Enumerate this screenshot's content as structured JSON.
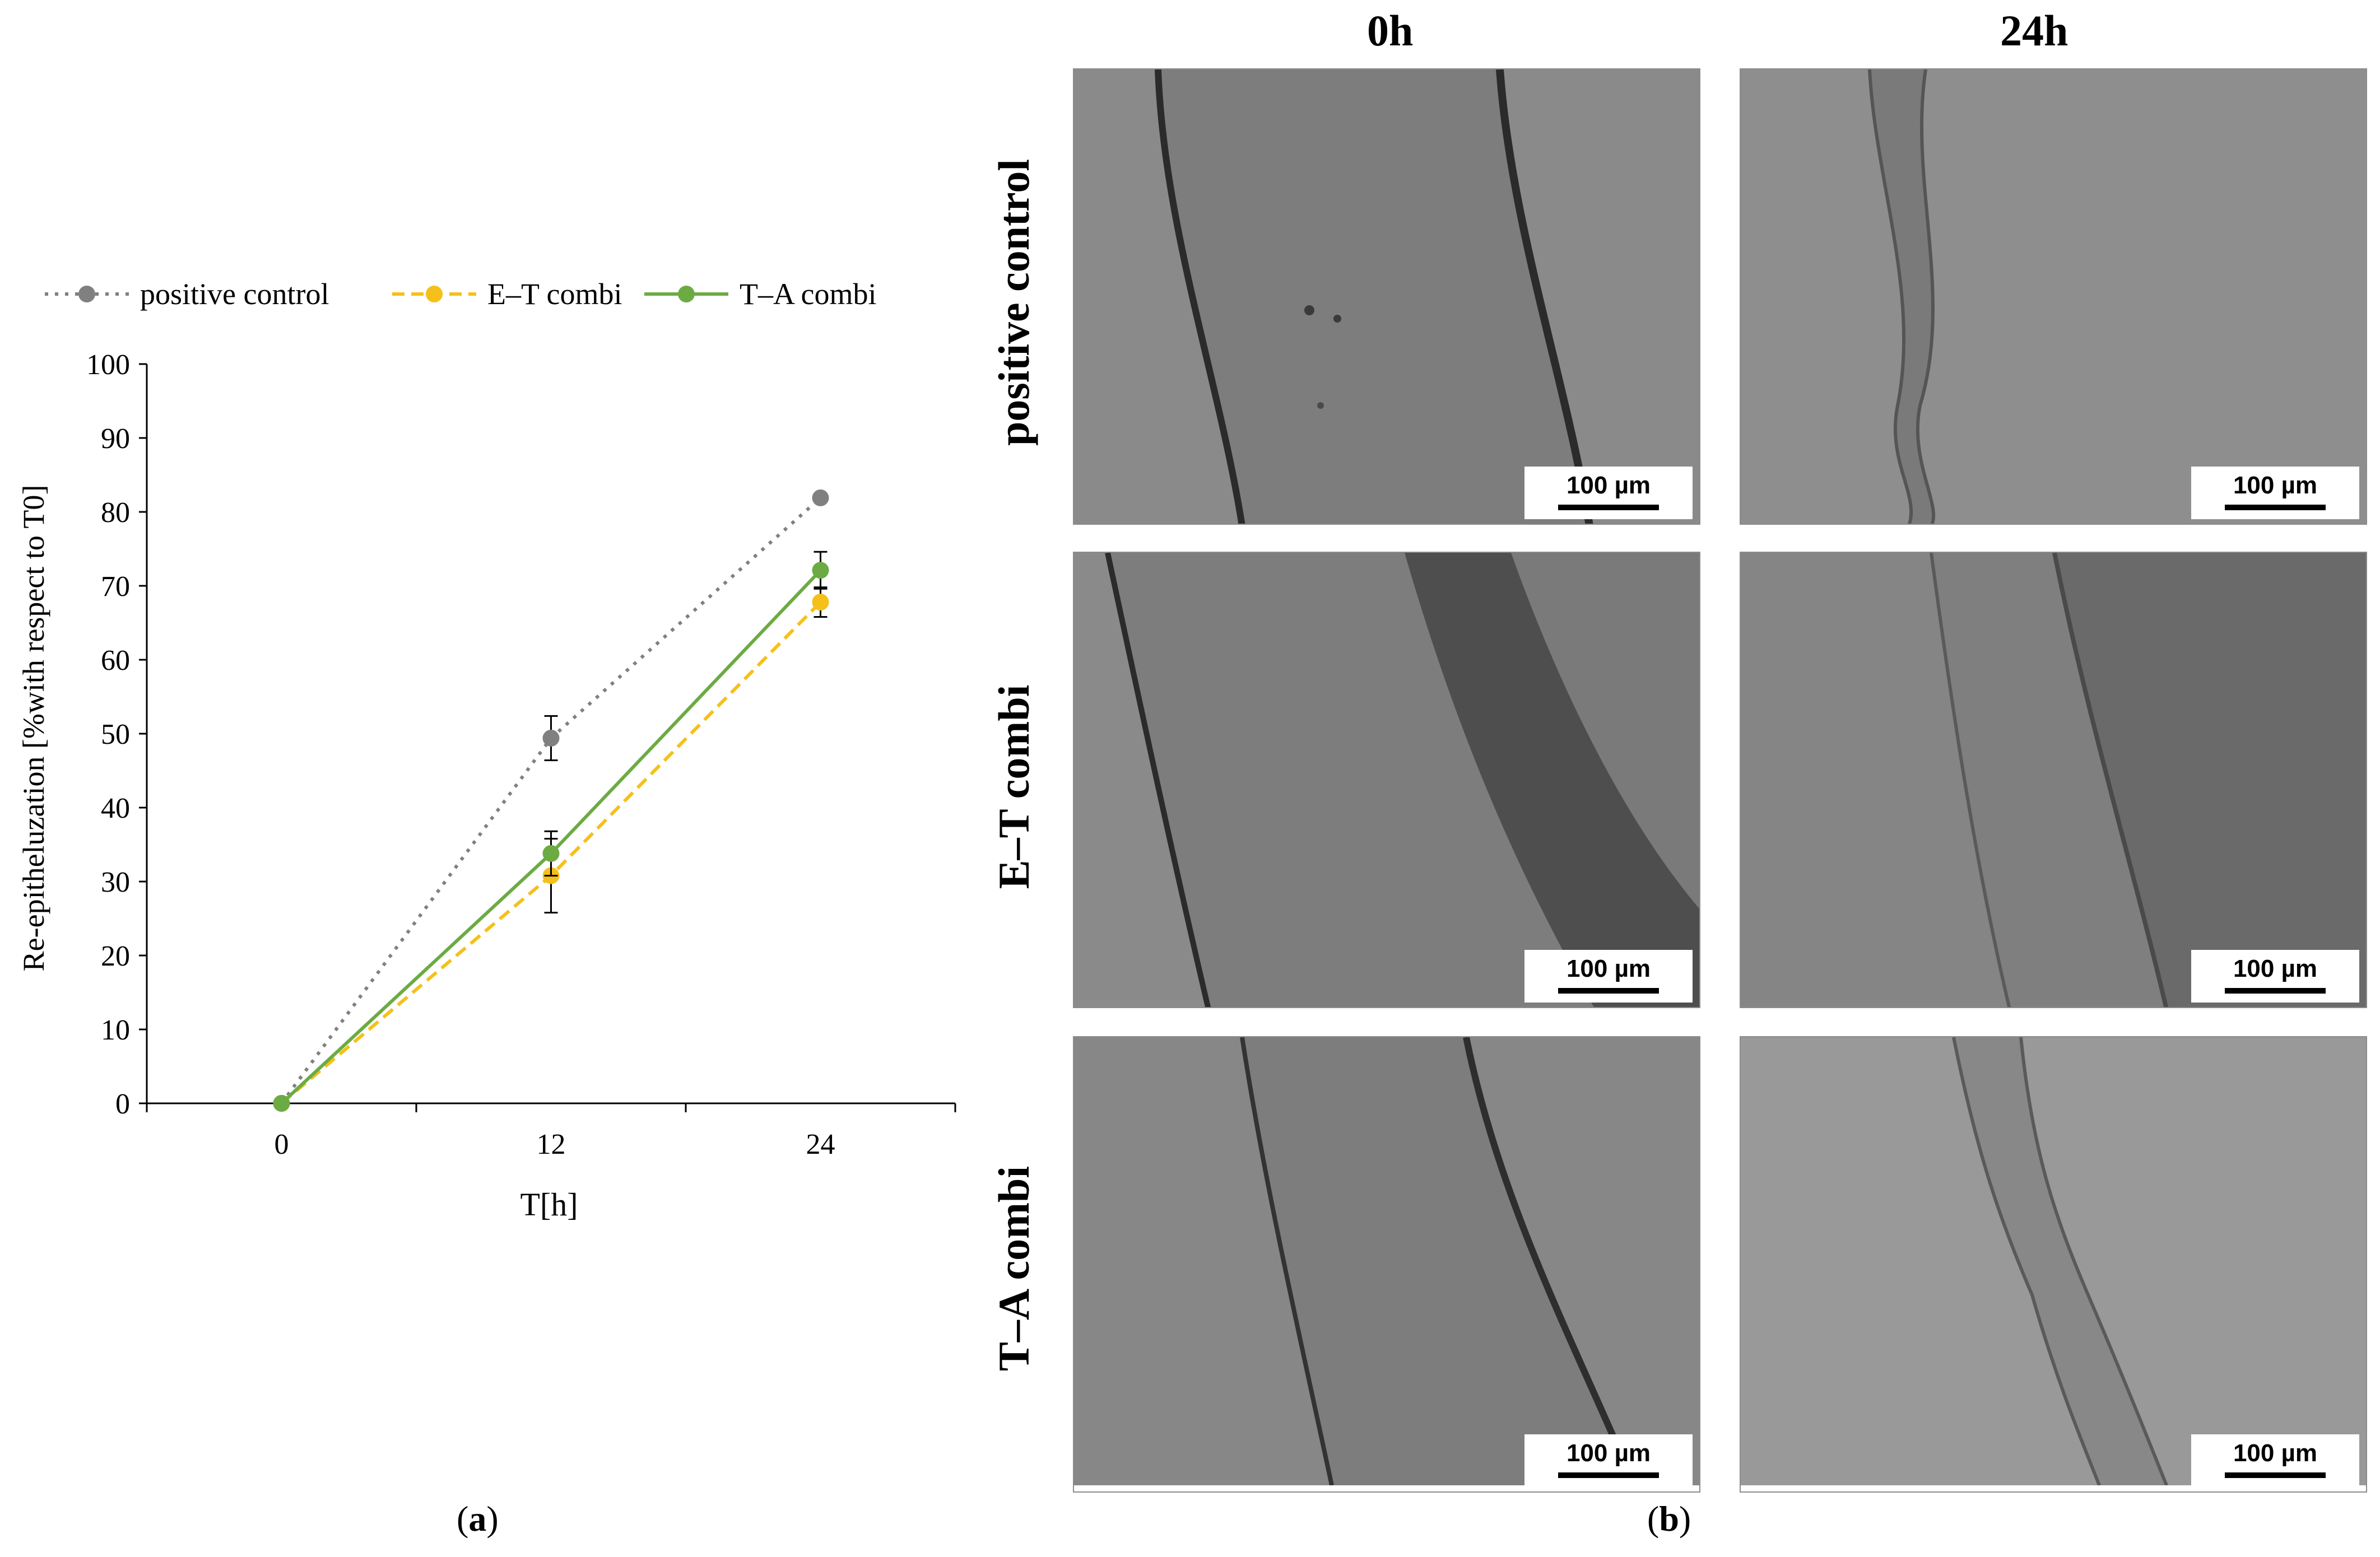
{
  "chart_data": {
    "type": "line",
    "title": "",
    "xlabel": "T[h]",
    "ylabel": "Re-epitheluzation [%with respect to T0]",
    "ylim": [
      0,
      100
    ],
    "yticks": [
      "0",
      "10",
      "20",
      "30",
      "40",
      "50",
      "60",
      "70",
      "80",
      "90",
      "100"
    ],
    "x": [
      "0",
      "12",
      "24"
    ],
    "grid": false,
    "legend_position": "top",
    "series": [
      {
        "name": "positive control",
        "values": [
          0,
          49.4,
          81.9
        ],
        "errors": [
          0,
          3.0,
          0
        ],
        "color": "#808080",
        "dash": "dotted"
      },
      {
        "name": "E–T combi",
        "values": [
          0,
          30.8,
          67.8
        ],
        "errors": [
          0,
          5.0,
          2.0
        ],
        "color": "#f5c01a",
        "dash": "dashed"
      },
      {
        "name": "T–A combi",
        "values": [
          0,
          33.8,
          72.1
        ],
        "errors": [
          0,
          3.0,
          2.5
        ],
        "color": "#6cab44",
        "dash": "solid"
      }
    ]
  },
  "figure": {
    "panel_a": {
      "open": "(",
      "letter": "a",
      "close": ")"
    },
    "panel_b": {
      "open": "(",
      "letter": "b",
      "close": ")"
    },
    "columns": [
      "0h",
      "24h"
    ],
    "rows": [
      "positive control",
      "E–T combi",
      "T–A combi"
    ],
    "scale_bar": "100 µm"
  }
}
